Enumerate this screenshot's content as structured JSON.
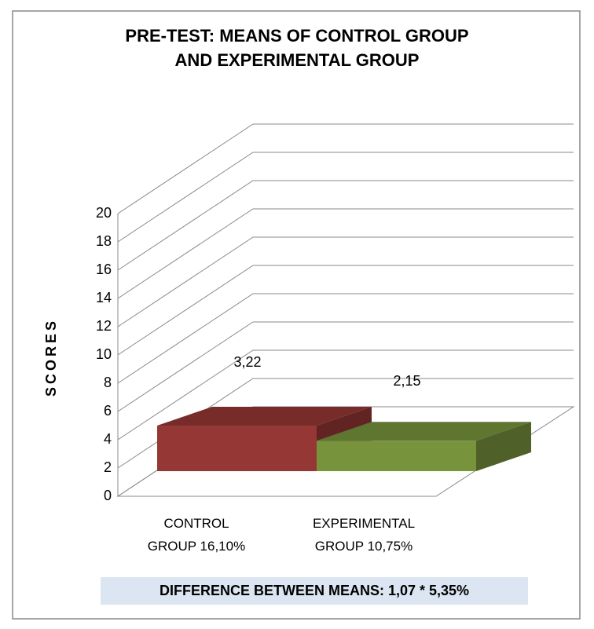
{
  "chart_data": {
    "type": "bar3d",
    "title": "PRE-TEST: MEANS OF CONTROL GROUP AND EXPERIMENTAL GROUP",
    "y_label": "SCORES",
    "categories": [
      "CONTROL\nGROUP 16,10%",
      "EXPERIMENTAL\nGROUP 10,75%"
    ],
    "series": [
      {
        "name": "Means",
        "colors": [
          "#953735",
          "#77933c"
        ],
        "values": [
          3.22,
          2.15
        ],
        "value_labels": [
          "3,22",
          "2,15"
        ]
      }
    ],
    "ylim": [
      0,
      20
    ],
    "yticks": [
      0,
      2,
      4,
      6,
      8,
      10,
      12,
      14,
      16,
      18,
      20
    ],
    "grid": true,
    "annotation": "DIFFERENCE BETWEEN MEANS: 1,07  * 5,35%"
  }
}
